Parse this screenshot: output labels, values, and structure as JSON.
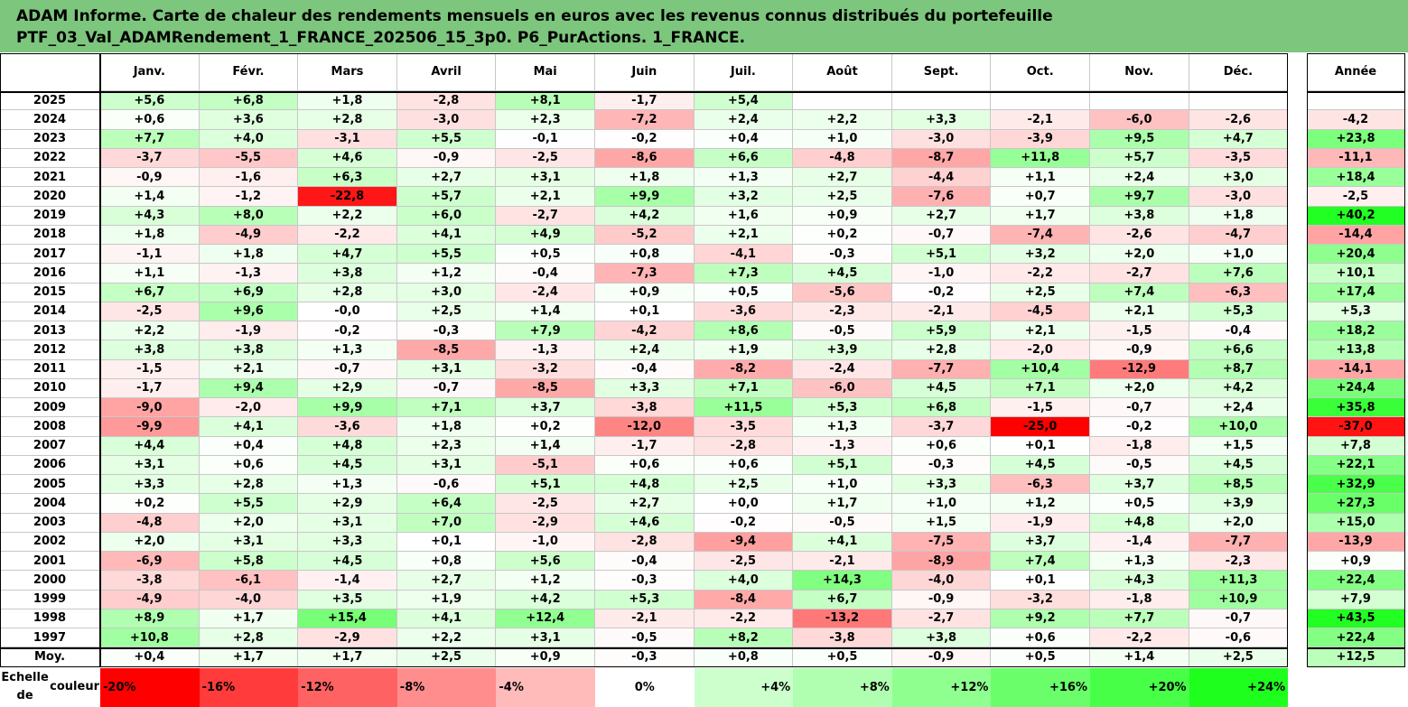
{
  "title_line1": "ADAM Informe. Carte de chaleur des rendements mensuels en euros avec les revenus connus distribués du portefeuille",
  "title_line2": "PTF_03_Val_ADAMRendement_1_FRANCE_202506_15_3p0. P6_PurActions. 1_FRANCE.",
  "chart_data": {
    "type": "heatmap",
    "columns": [
      "Janv.",
      "Févr.",
      "Mars",
      "Avril",
      "Mai",
      "Juin",
      "Juil.",
      "Août",
      "Sept.",
      "Oct.",
      "Nov.",
      "Déc."
    ],
    "year_column": "Année",
    "rows": [
      {
        "label": "2025",
        "values": [
          "+5,6",
          "+6,8",
          "+1,8",
          "-2,8",
          "+8,1",
          "-1,7",
          "+5,4",
          "",
          "",
          "",
          "",
          ""
        ],
        "year": ""
      },
      {
        "label": "2024",
        "values": [
          "+0,6",
          "+3,6",
          "+2,8",
          "-3,0",
          "+2,3",
          "-7,2",
          "+2,4",
          "+2,2",
          "+3,3",
          "-2,1",
          "-6,0",
          "-2,6"
        ],
        "year": "-4,2"
      },
      {
        "label": "2023",
        "values": [
          "+7,7",
          "+4,0",
          "-3,1",
          "+5,5",
          "-0,1",
          "-0,2",
          "+0,4",
          "+1,0",
          "-3,0",
          "-3,9",
          "+9,5",
          "+4,7"
        ],
        "year": "+23,8"
      },
      {
        "label": "2022",
        "values": [
          "-3,7",
          "-5,5",
          "+4,6",
          "-0,9",
          "-2,5",
          "-8,6",
          "+6,6",
          "-4,8",
          "-8,7",
          "+11,8",
          "+5,7",
          "-3,5"
        ],
        "year": "-11,1"
      },
      {
        "label": "2021",
        "values": [
          "-0,9",
          "-1,6",
          "+6,3",
          "+2,7",
          "+3,1",
          "+1,8",
          "+1,3",
          "+2,7",
          "-4,4",
          "+1,1",
          "+2,4",
          "+3,0"
        ],
        "year": "+18,4"
      },
      {
        "label": "2020",
        "values": [
          "+1,4",
          "-1,2",
          "-22,8",
          "+5,7",
          "+2,1",
          "+9,9",
          "+3,2",
          "+2,5",
          "-7,6",
          "+0,7",
          "+9,7",
          "-3,0"
        ],
        "year": "-2,5"
      },
      {
        "label": "2019",
        "values": [
          "+4,3",
          "+8,0",
          "+2,2",
          "+6,0",
          "-2,7",
          "+4,2",
          "+1,6",
          "+0,9",
          "+2,7",
          "+1,7",
          "+3,8",
          "+1,8"
        ],
        "year": "+40,2"
      },
      {
        "label": "2018",
        "values": [
          "+1,8",
          "-4,9",
          "-2,2",
          "+4,1",
          "+4,9",
          "-5,2",
          "+2,1",
          "+0,2",
          "-0,7",
          "-7,4",
          "-2,6",
          "-4,7"
        ],
        "year": "-14,4"
      },
      {
        "label": "2017",
        "values": [
          "-1,1",
          "+1,8",
          "+4,7",
          "+5,5",
          "+0,5",
          "+0,8",
          "-4,1",
          "-0,3",
          "+5,1",
          "+3,2",
          "+2,0",
          "+1,0"
        ],
        "year": "+20,4"
      },
      {
        "label": "2016",
        "values": [
          "+1,1",
          "-1,3",
          "+3,8",
          "+1,2",
          "-0,4",
          "-7,3",
          "+7,3",
          "+4,5",
          "-1,0",
          "-2,2",
          "-2,7",
          "+7,6"
        ],
        "year": "+10,1"
      },
      {
        "label": "2015",
        "values": [
          "+6,7",
          "+6,9",
          "+2,8",
          "+3,0",
          "-2,4",
          "+0,9",
          "+0,5",
          "-5,6",
          "-0,2",
          "+2,5",
          "+7,4",
          "-6,3"
        ],
        "year": "+17,4"
      },
      {
        "label": "2014",
        "values": [
          "-2,5",
          "+9,6",
          "-0,0",
          "+2,5",
          "+1,4",
          "+0,1",
          "-3,6",
          "-2,3",
          "-2,1",
          "-4,5",
          "+2,1",
          "+5,3"
        ],
        "year": "+5,3"
      },
      {
        "label": "2013",
        "values": [
          "+2,2",
          "-1,9",
          "-0,2",
          "-0,3",
          "+7,9",
          "-4,2",
          "+8,6",
          "-0,5",
          "+5,9",
          "+2,1",
          "-1,5",
          "-0,4"
        ],
        "year": "+18,2"
      },
      {
        "label": "2012",
        "values": [
          "+3,8",
          "+3,8",
          "+1,3",
          "-8,5",
          "-1,3",
          "+2,4",
          "+1,9",
          "+3,9",
          "+2,8",
          "-2,0",
          "-0,9",
          "+6,6"
        ],
        "year": "+13,8"
      },
      {
        "label": "2011",
        "values": [
          "-1,5",
          "+2,1",
          "-0,7",
          "+3,1",
          "-3,2",
          "-0,4",
          "-8,2",
          "-2,4",
          "-7,7",
          "+10,4",
          "-12,9",
          "+8,7"
        ],
        "year": "-14,1"
      },
      {
        "label": "2010",
        "values": [
          "-1,7",
          "+9,4",
          "+2,9",
          "-0,7",
          "-8,5",
          "+3,3",
          "+7,1",
          "-6,0",
          "+4,5",
          "+7,1",
          "+2,0",
          "+4,2"
        ],
        "year": "+24,4"
      },
      {
        "label": "2009",
        "values": [
          "-9,0",
          "-2,0",
          "+9,9",
          "+7,1",
          "+3,7",
          "-3,8",
          "+11,5",
          "+5,3",
          "+6,8",
          "-1,5",
          "-0,7",
          "+2,4"
        ],
        "year": "+35,8"
      },
      {
        "label": "2008",
        "values": [
          "-9,9",
          "+4,1",
          "-3,6",
          "+1,8",
          "+0,2",
          "-12,0",
          "-3,5",
          "+1,3",
          "-3,7",
          "-25,0",
          "-0,2",
          "+10,0"
        ],
        "year": "-37,0"
      },
      {
        "label": "2007",
        "values": [
          "+4,4",
          "+0,4",
          "+4,8",
          "+2,3",
          "+1,4",
          "-1,7",
          "-2,8",
          "-1,3",
          "+0,6",
          "+0,1",
          "-1,8",
          "+1,5"
        ],
        "year": "+7,8"
      },
      {
        "label": "2006",
        "values": [
          "+3,1",
          "+0,6",
          "+4,5",
          "+3,1",
          "-5,1",
          "+0,6",
          "+0,6",
          "+5,1",
          "-0,3",
          "+4,5",
          "-0,5",
          "+4,5"
        ],
        "year": "+22,1"
      },
      {
        "label": "2005",
        "values": [
          "+3,3",
          "+2,8",
          "+1,3",
          "-0,6",
          "+5,1",
          "+4,8",
          "+2,5",
          "+1,0",
          "+3,3",
          "-6,3",
          "+3,7",
          "+8,5"
        ],
        "year": "+32,9"
      },
      {
        "label": "2004",
        "values": [
          "+0,2",
          "+5,5",
          "+2,9",
          "+6,4",
          "-2,5",
          "+2,7",
          "+0,0",
          "+1,7",
          "+1,0",
          "+1,2",
          "+0,5",
          "+3,9"
        ],
        "year": "+27,3"
      },
      {
        "label": "2003",
        "values": [
          "-4,8",
          "+2,0",
          "+3,1",
          "+7,0",
          "-2,9",
          "+4,6",
          "-0,2",
          "-0,5",
          "+1,5",
          "-1,9",
          "+4,8",
          "+2,0"
        ],
        "year": "+15,0"
      },
      {
        "label": "2002",
        "values": [
          "+2,0",
          "+3,1",
          "+3,3",
          "+0,1",
          "-1,0",
          "-2,8",
          "-9,4",
          "+4,1",
          "-7,5",
          "+3,7",
          "-1,4",
          "-7,7"
        ],
        "year": "-13,9"
      },
      {
        "label": "2001",
        "values": [
          "-6,9",
          "+5,8",
          "+4,5",
          "+0,8",
          "+5,6",
          "-0,4",
          "-2,5",
          "-2,1",
          "-8,9",
          "+7,4",
          "+1,3",
          "-2,3"
        ],
        "year": "+0,9"
      },
      {
        "label": "2000",
        "values": [
          "-3,8",
          "-6,1",
          "-1,4",
          "+2,7",
          "+1,2",
          "-0,3",
          "+4,0",
          "+14,3",
          "-4,0",
          "+0,1",
          "+4,3",
          "+11,3"
        ],
        "year": "+22,4"
      },
      {
        "label": "1999",
        "values": [
          "-4,9",
          "-4,0",
          "+3,5",
          "+1,9",
          "+4,2",
          "+5,3",
          "-8,4",
          "+6,7",
          "-0,9",
          "-3,2",
          "-1,8",
          "+10,9"
        ],
        "year": "+7,9"
      },
      {
        "label": "1998",
        "values": [
          "+8,9",
          "+1,7",
          "+15,4",
          "+4,1",
          "+12,4",
          "-2,1",
          "-2,2",
          "-13,2",
          "-2,7",
          "+9,2",
          "+7,7",
          "-0,7"
        ],
        "year": "+43,5"
      },
      {
        "label": "1997",
        "values": [
          "+10,8",
          "+2,8",
          "-2,9",
          "+2,2",
          "+3,1",
          "-0,5",
          "+8,2",
          "-3,8",
          "+3,8",
          "+0,6",
          "-2,2",
          "-0,6"
        ],
        "year": "+22,4"
      }
    ],
    "average_row": {
      "label": "Moy.",
      "values": [
        "+0,4",
        "+1,7",
        "+1,7",
        "+2,5",
        "+0,9",
        "-0,3",
        "+0,8",
        "+0,5",
        "-0,9",
        "+0,5",
        "+1,4",
        "+2,5"
      ],
      "year": "+12,5"
    },
    "color_scale": {
      "label_line1": "Echelle de",
      "label_line2": "couleur",
      "steps": [
        "-20%",
        "-16%",
        "-12%",
        "-8%",
        "-4%",
        "0%",
        "+4%",
        "+8%",
        "+12%",
        "+16%",
        "+20%",
        "+24%"
      ],
      "colors": [
        "#ff0000",
        "#ff3b3b",
        "#ff6262",
        "#ff8d8d",
        "#ffbaba",
        "#ffffff",
        "#ccffcc",
        "#b0ffb0",
        "#8fff8f",
        "#6aff6a",
        "#46ff46",
        "#1eff1e"
      ]
    },
    "negative_color": "#ff0000",
    "positive_color": "#22ff22"
  }
}
